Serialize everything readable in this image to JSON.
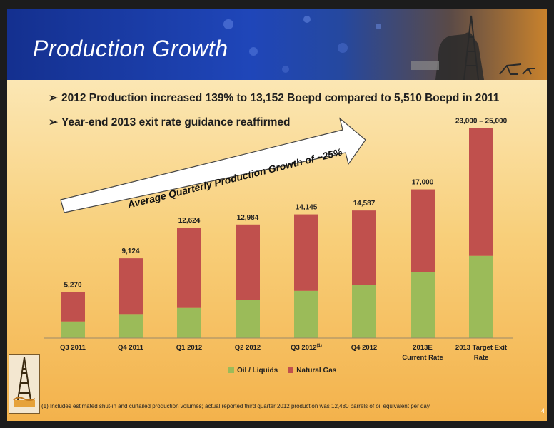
{
  "slide": {
    "title": "Production Growth",
    "bullets": [
      "2012 Production increased 139% to 13,152 Boepd compared to 5,510 Boepd in 2011",
      "Year-end 2013 exit rate guidance reaffirmed"
    ],
    "growth_arrow_text": "Average Quarterly Production Growth of ~25%",
    "footnote": "(1) Includes  estimated shut-in and curtailed production volumes; actual reported third quarter 2012 production was 12,480 barrels of oil equivalent per day",
    "page_number": "4"
  },
  "chart_data": {
    "type": "bar",
    "stacked": true,
    "categories": [
      "Q3 2011",
      "Q4 2011",
      "Q1 2012",
      "Q2 2012",
      "Q3 2012",
      "Q4 2012",
      "2013E\nCurrent Rate",
      "2013 Target Exit\nRate"
    ],
    "category_superscripts": [
      "",
      "",
      "",
      "",
      "(1)",
      "",
      "",
      ""
    ],
    "series": [
      {
        "name": "Oil / Liquids",
        "color": "#9bbb59",
        "values": [
          1900,
          2750,
          3450,
          4350,
          5400,
          6100,
          7550,
          9400
        ]
      },
      {
        "name": "Natural Gas",
        "color": "#c0504d",
        "values": [
          3370,
          6374,
          9174,
          8634,
          8745,
          8487,
          9450,
          14600
        ]
      }
    ],
    "totals_labels": [
      "5,270",
      "9,124",
      "12,624",
      "12,984",
      "14,145",
      "14,587",
      "17,000",
      "23,000 – 25,000"
    ],
    "ylim": [
      0,
      25000
    ],
    "grid": false,
    "legend": "bottom"
  }
}
